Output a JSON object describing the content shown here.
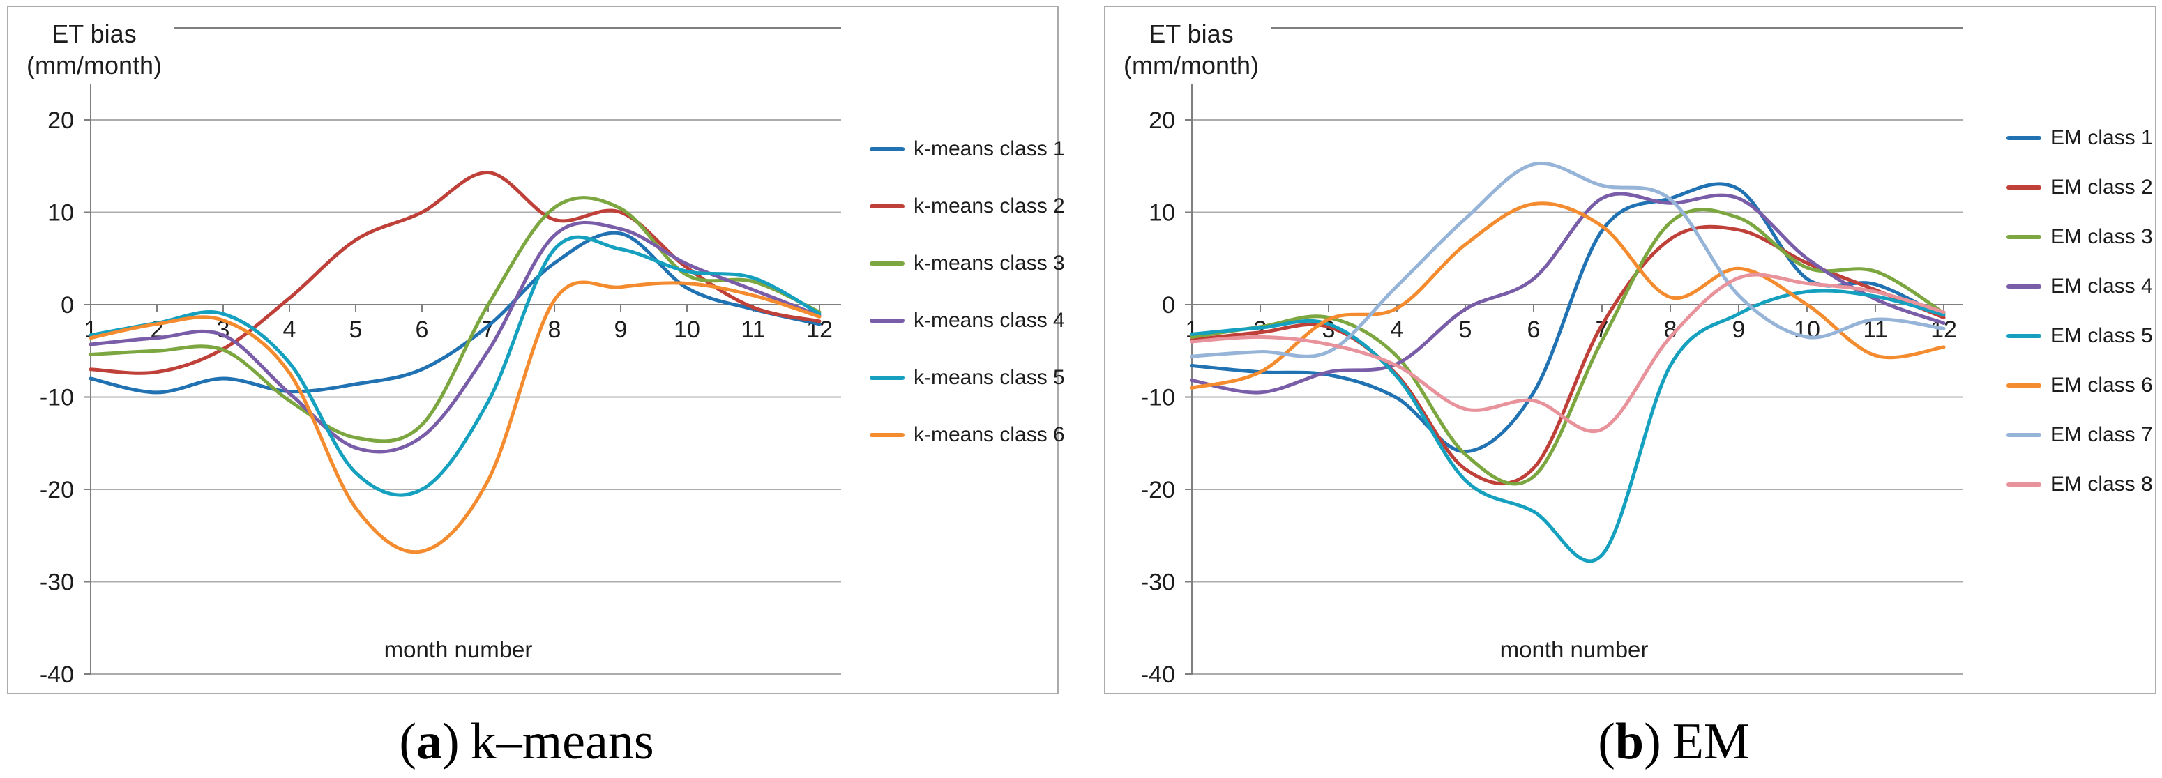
{
  "colors": {
    "gridline": "#acacac",
    "axis": "#7f7f7f",
    "panel_border": "#ababab",
    "text": "#1c1c1c"
  },
  "captions": [
    {
      "marker": "a",
      "text": "k–means"
    },
    {
      "marker": "b",
      "text": "EM"
    }
  ],
  "chart_data": [
    {
      "type": "line",
      "title": "ET bias (mm/month) — k-means classes",
      "ylabel_lines": [
        "ET bias",
        "(mm/month)"
      ],
      "xlabel": "month number",
      "x": [
        1,
        2,
        3,
        4,
        5,
        6,
        7,
        8,
        9,
        10,
        11,
        12
      ],
      "yticks": [
        20,
        10,
        0,
        -10,
        -20,
        -30,
        -40
      ],
      "ylim": [
        -40,
        25
      ],
      "grid": true,
      "legend_position": "right",
      "smooth": true,
      "series": [
        {
          "name": "k-means class 1",
          "color": "#2172b2",
          "values": [
            -8,
            -9.5,
            -8,
            -9.4,
            -8.6,
            -7,
            -2.3,
            4.5,
            7.7,
            1.8,
            -0.5,
            -2.1
          ]
        },
        {
          "name": "k-means class 2",
          "color": "#bf4038",
          "values": [
            -7,
            -7.3,
            -4.8,
            0.7,
            7,
            10,
            14.3,
            9.2,
            10,
            4,
            -0.3,
            -1.8
          ]
        },
        {
          "name": "k-means class 3",
          "color": "#7ca63f",
          "values": [
            -5.4,
            -5,
            -4.9,
            -10.4,
            -14.4,
            -13,
            0,
            10.5,
            10.4,
            3.2,
            2.5,
            -0.8
          ]
        },
        {
          "name": "k-means class 4",
          "color": "#7a5da8",
          "values": [
            -4.3,
            -3.6,
            -3.3,
            -9.6,
            -15.5,
            -14.3,
            -5,
            7.5,
            8.2,
            4.4,
            1.6,
            -1.2
          ]
        },
        {
          "name": "k-means class 5",
          "color": "#14a0be",
          "values": [
            -3.3,
            -2,
            -1,
            -6.3,
            -18.2,
            -20,
            -10.5,
            6,
            6,
            3.6,
            2.9,
            -1
          ]
        },
        {
          "name": "k-means class 6",
          "color": "#f48b2e",
          "values": [
            -3.6,
            -2.1,
            -1.7,
            -7.4,
            -22,
            -26.7,
            -19,
            0.5,
            1.9,
            2.3,
            1,
            -1.3
          ]
        }
      ]
    },
    {
      "type": "line",
      "title": "ET bias (mm/month) — EM classes",
      "ylabel_lines": [
        "ET bias",
        "(mm/month)"
      ],
      "xlabel": "month number",
      "x": [
        1,
        2,
        3,
        4,
        5,
        6,
        7,
        8,
        9,
        10,
        11,
        12
      ],
      "yticks": [
        20,
        10,
        0,
        -10,
        -20,
        -30,
        -40
      ],
      "ylim": [
        -40,
        25
      ],
      "grid": true,
      "legend_position": "right",
      "smooth": true,
      "series": [
        {
          "name": "EM class 1",
          "color": "#2172b2",
          "values": [
            -6.6,
            -7.3,
            -7.6,
            -10.1,
            -15.9,
            -9.5,
            8,
            11.5,
            12.5,
            2.8,
            2.2,
            -1.4
          ]
        },
        {
          "name": "EM class 2",
          "color": "#bf4038",
          "values": [
            -3.8,
            -3,
            -2.4,
            -7.6,
            -17.8,
            -17.7,
            -2.2,
            7.1,
            8.1,
            4.5,
            1.6,
            -1.4
          ]
        },
        {
          "name": "EM class 3",
          "color": "#7ca63f",
          "values": [
            -3.5,
            -2.4,
            -1.4,
            -5.6,
            -16.2,
            -18.6,
            -3.9,
            8.9,
            9.4,
            4,
            3.6,
            -0.9
          ]
        },
        {
          "name": "EM class 4",
          "color": "#7a5da8",
          "values": [
            -8.2,
            -9.5,
            -7.3,
            -6.4,
            -0.5,
            2.8,
            11.5,
            11,
            11.5,
            5,
            0.6,
            -2
          ]
        },
        {
          "name": "EM class 5",
          "color": "#14a0be",
          "values": [
            -3.2,
            -2.5,
            -2.1,
            -7.8,
            -19,
            -22.4,
            -27.1,
            -6.6,
            -1,
            1.4,
            0.9,
            -1.1
          ]
        },
        {
          "name": "EM class 6",
          "color": "#f48b2e",
          "values": [
            -9,
            -7.3,
            -1.6,
            -0.4,
            6.5,
            10.9,
            8.5,
            0.8,
            3.9,
            0,
            -5.5,
            -4.6
          ]
        },
        {
          "name": "EM class 7",
          "color": "#96b4d8",
          "values": [
            -5.6,
            -5.1,
            -5.1,
            2,
            9.3,
            15.2,
            12.9,
            11.4,
            1,
            -3.5,
            -1.6,
            -2.6
          ]
        },
        {
          "name": "EM class 8",
          "color": "#e8939c",
          "values": [
            -4,
            -3.5,
            -4.3,
            -6.6,
            -11.3,
            -10.4,
            -13.5,
            -3.5,
            2.9,
            2.3,
            1.4,
            -0.8
          ]
        }
      ]
    }
  ]
}
